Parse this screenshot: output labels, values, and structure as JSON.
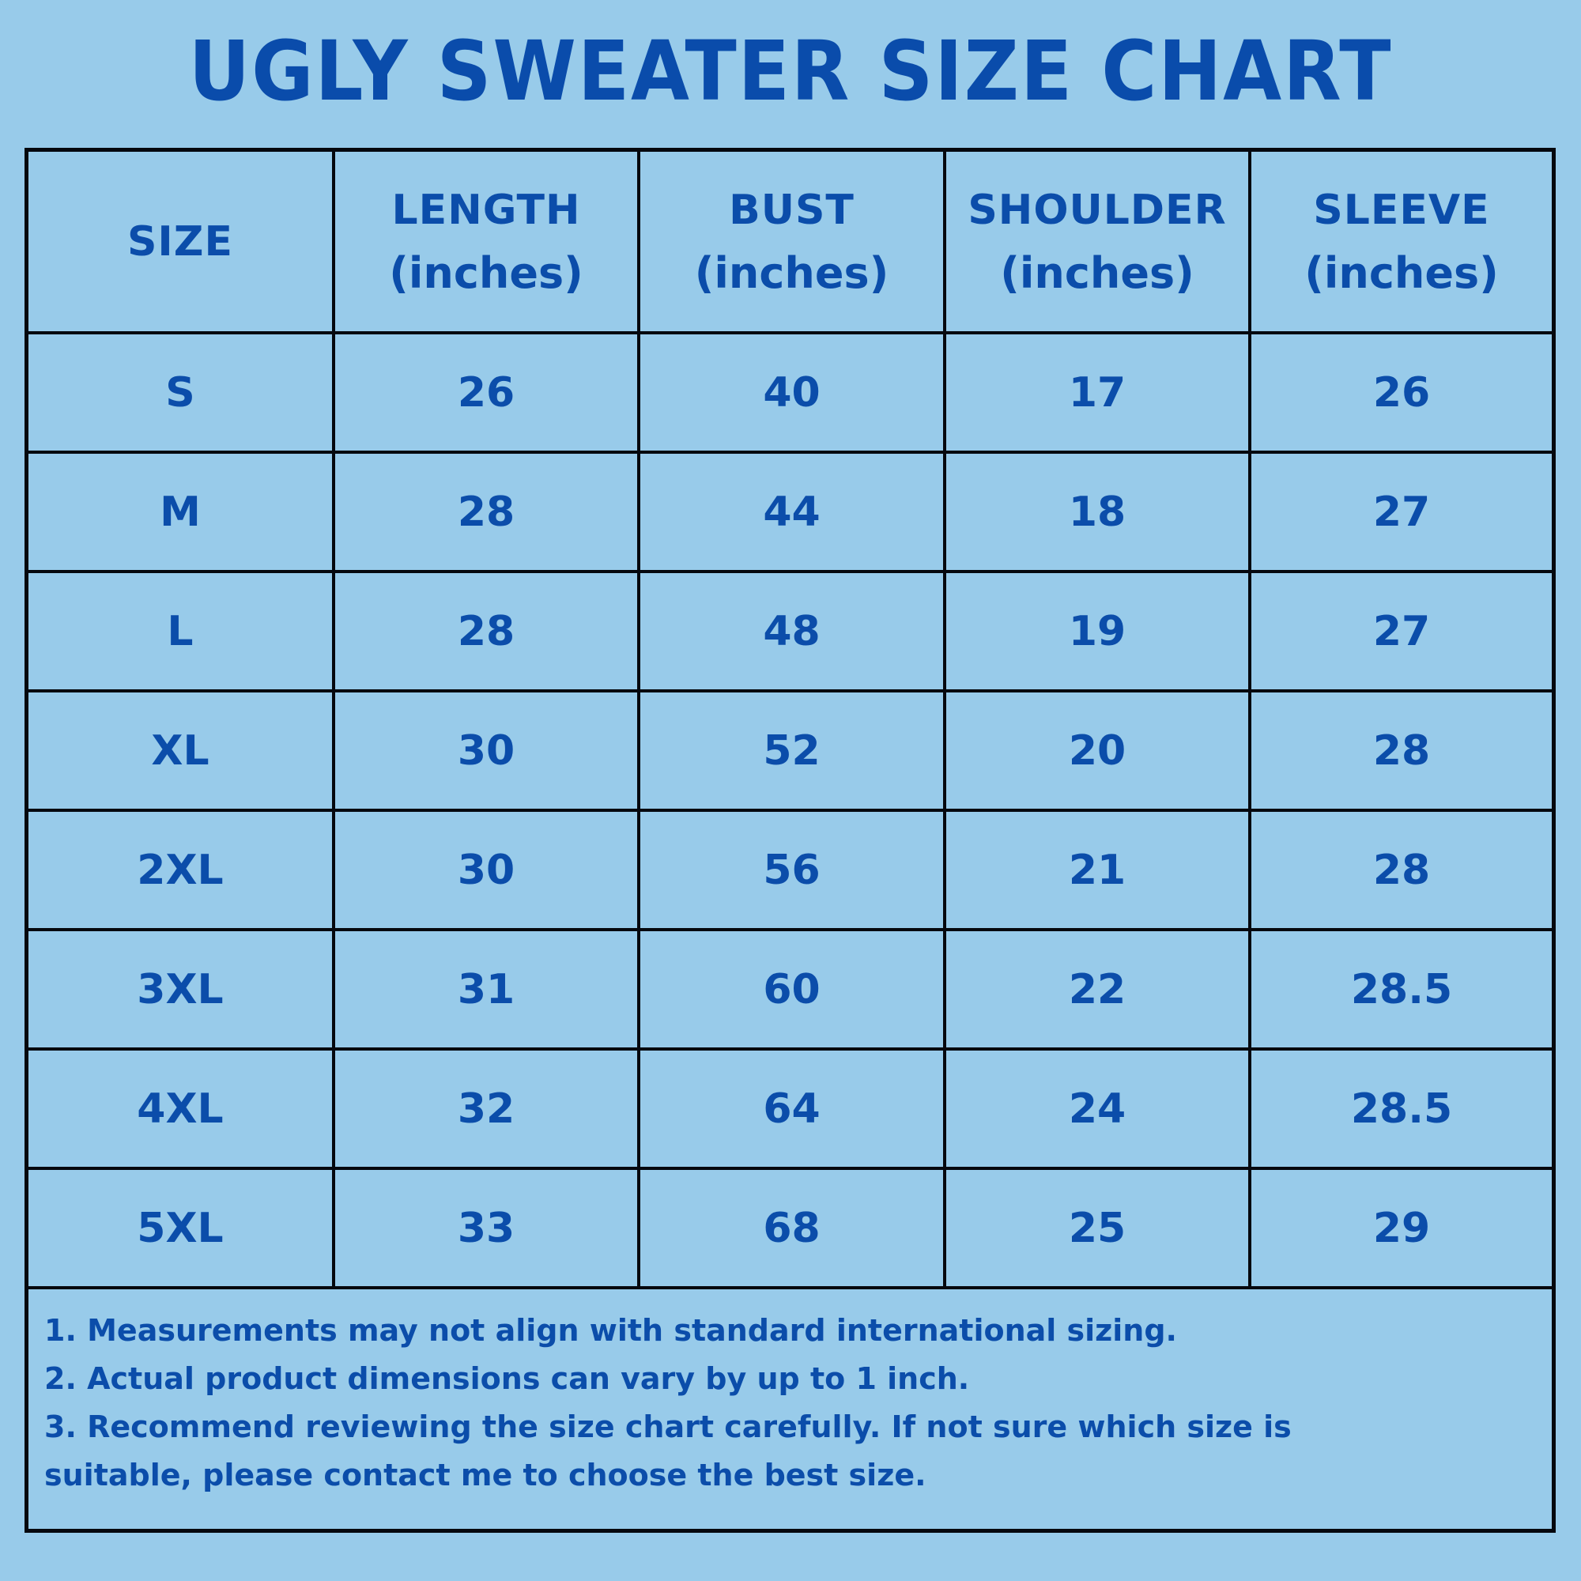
{
  "title": "UGLY SWEATER SIZE CHART",
  "colors": {
    "background": "#98cbea",
    "text": "#0b4daa",
    "border": "#05080e"
  },
  "table": {
    "headers": [
      {
        "label": "SIZE",
        "unit": ""
      },
      {
        "label": "LENGTH",
        "unit": "(inches)"
      },
      {
        "label": "BUST",
        "unit": "(inches)"
      },
      {
        "label": "SHOULDER",
        "unit": "(inches)"
      },
      {
        "label": "SLEEVE",
        "unit": "(inches)"
      }
    ],
    "rows": [
      [
        "S",
        "26",
        "40",
        "17",
        "26"
      ],
      [
        "M",
        "28",
        "44",
        "18",
        "27"
      ],
      [
        "L",
        "28",
        "48",
        "19",
        "27"
      ],
      [
        "XL",
        "30",
        "52",
        "20",
        "28"
      ],
      [
        "2XL",
        "30",
        "56",
        "21",
        "28"
      ],
      [
        "3XL",
        "31",
        "60",
        "22",
        "28.5"
      ],
      [
        "4XL",
        "32",
        "64",
        "24",
        "28.5"
      ],
      [
        "5XL",
        "33",
        "68",
        "25",
        "29"
      ]
    ]
  },
  "notes": [
    "1. Measurements may not align with standard international sizing.",
    "2. Actual product dimensions can vary by up to 1 inch.",
    "3. Recommend reviewing the size chart carefully. If not sure which size is",
    "suitable, please contact me to choose the best size."
  ],
  "chart_data": {
    "type": "table",
    "title": "UGLY SWEATER SIZE CHART",
    "columns": [
      "SIZE",
      "LENGTH (inches)",
      "BUST (inches)",
      "SHOULDER (inches)",
      "SLEEVE (inches)"
    ],
    "categories": [
      "S",
      "M",
      "L",
      "XL",
      "2XL",
      "3XL",
      "4XL",
      "5XL"
    ],
    "series": [
      {
        "name": "LENGTH (inches)",
        "values": [
          26,
          28,
          28,
          30,
          30,
          31,
          32,
          33
        ]
      },
      {
        "name": "BUST (inches)",
        "values": [
          40,
          44,
          48,
          52,
          56,
          60,
          64,
          68
        ]
      },
      {
        "name": "SHOULDER (inches)",
        "values": [
          17,
          18,
          19,
          20,
          21,
          22,
          24,
          25
        ]
      },
      {
        "name": "SLEEVE (inches)",
        "values": [
          26,
          27,
          27,
          28,
          28,
          28.5,
          28.5,
          29
        ]
      }
    ],
    "notes": [
      "1. Measurements may not align with standard international sizing.",
      "2. Actual product dimensions can vary by up to 1 inch.",
      "3. Recommend reviewing the size chart carefully. If not sure which size is suitable, please contact me to choose the best size."
    ]
  }
}
